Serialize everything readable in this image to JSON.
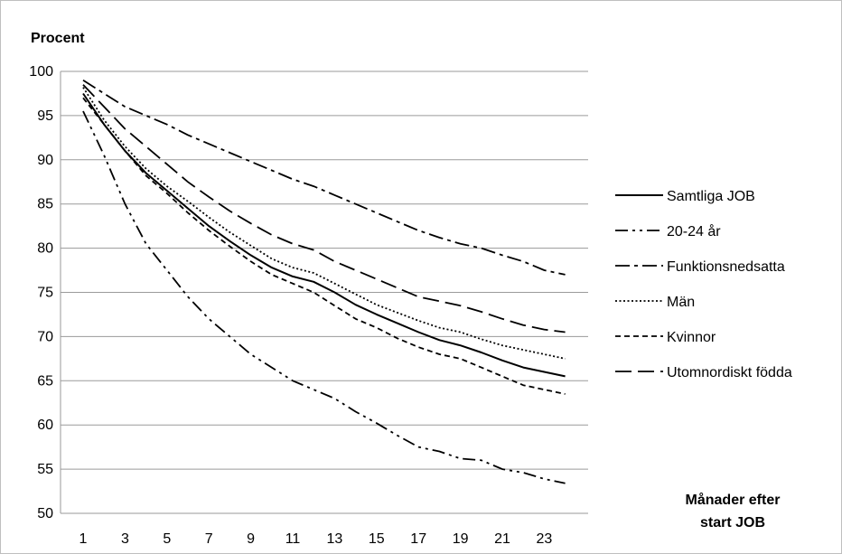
{
  "chart_data": {
    "type": "line",
    "ylabel": "Procent",
    "xlabel_lines": [
      "Månader efter",
      "start JOB"
    ],
    "ylim": [
      50,
      100
    ],
    "y_ticks": [
      50,
      55,
      60,
      65,
      70,
      75,
      80,
      85,
      90,
      95,
      100
    ],
    "x_range": [
      1,
      24
    ],
    "x_tick_labels": [
      1,
      3,
      5,
      7,
      9,
      11,
      13,
      15,
      17,
      19,
      21,
      23
    ],
    "grid": "horizontal",
    "legend_position": "right",
    "series": [
      {
        "name": "Samtliga JOB",
        "dash": "solid",
        "x": [
          1,
          2,
          3,
          4,
          5,
          6,
          7,
          8,
          9,
          10,
          11,
          12,
          13,
          14,
          15,
          16,
          17,
          18,
          19,
          20,
          21,
          22,
          23,
          24
        ],
        "values": [
          97.5,
          94,
          91,
          88.5,
          86.5,
          84.5,
          82.5,
          80.8,
          79.2,
          77.8,
          76.8,
          76.2,
          75,
          73.6,
          72.5,
          71.5,
          70.5,
          69.6,
          69,
          68.2,
          67.3,
          66.5,
          66,
          65.5
        ]
      },
      {
        "name": "20-24 år",
        "dash": "dash-dot-dot",
        "x": [
          1,
          2,
          3,
          4,
          5,
          6,
          7,
          8,
          9,
          10,
          11,
          12,
          13,
          14,
          15,
          16,
          17,
          18,
          19,
          20,
          21,
          22,
          23,
          24
        ],
        "values": [
          95.5,
          90.5,
          85,
          80.5,
          77.5,
          74.5,
          72,
          70,
          68,
          66.5,
          65,
          64,
          63,
          61.5,
          60.2,
          58.8,
          57.5,
          57,
          56.2,
          56,
          55,
          54.6,
          53.9,
          53.4
        ]
      },
      {
        "name": "Funktionsnedsatta",
        "dash": "dash-dot",
        "x": [
          1,
          2,
          3,
          4,
          5,
          6,
          7,
          8,
          9,
          10,
          11,
          12,
          13,
          14,
          15,
          16,
          17,
          18,
          19,
          20,
          21,
          22,
          23,
          24
        ],
        "values": [
          99,
          97.5,
          96,
          95,
          94,
          92.8,
          91.8,
          90.8,
          89.8,
          88.8,
          87.8,
          87,
          86,
          85,
          84,
          83,
          82,
          81.2,
          80.5,
          80,
          79.2,
          78.5,
          77.5,
          77
        ]
      },
      {
        "name": "Män",
        "dash": "dotted",
        "x": [
          1,
          2,
          3,
          4,
          5,
          6,
          7,
          8,
          9,
          10,
          11,
          12,
          13,
          14,
          15,
          16,
          17,
          18,
          19,
          20,
          21,
          22,
          23,
          24
        ],
        "values": [
          98.2,
          94.5,
          91.5,
          89,
          87,
          85.3,
          83.5,
          81.8,
          80.3,
          78.8,
          77.8,
          77.2,
          76,
          74.8,
          73.6,
          72.7,
          71.8,
          71,
          70.5,
          69.7,
          69,
          68.5,
          68,
          67.5
        ]
      },
      {
        "name": "Kvinnor",
        "dash": "short-dash",
        "x": [
          1,
          2,
          3,
          4,
          5,
          6,
          7,
          8,
          9,
          10,
          11,
          12,
          13,
          14,
          15,
          16,
          17,
          18,
          19,
          20,
          21,
          22,
          23,
          24
        ],
        "values": [
          97,
          94,
          91,
          88.2,
          86.2,
          84,
          82,
          80.2,
          78.5,
          77,
          76,
          75,
          73.5,
          72,
          71,
          69.8,
          68.8,
          68,
          67.5,
          66.5,
          65.5,
          64.5,
          64,
          63.5
        ]
      },
      {
        "name": "Utomnordiskt födda",
        "dash": "long-dash",
        "x": [
          1,
          2,
          3,
          4,
          5,
          6,
          7,
          8,
          9,
          10,
          11,
          12,
          13,
          14,
          15,
          16,
          17,
          18,
          19,
          20,
          21,
          22,
          23,
          24
        ],
        "values": [
          98.5,
          96,
          93.5,
          91.5,
          89.5,
          87.5,
          85.8,
          84.2,
          82.8,
          81.5,
          80.5,
          79.8,
          78.5,
          77.5,
          76.5,
          75.5,
          74.5,
          74,
          73.5,
          72.8,
          72,
          71.3,
          70.8,
          70.5
        ]
      }
    ]
  }
}
